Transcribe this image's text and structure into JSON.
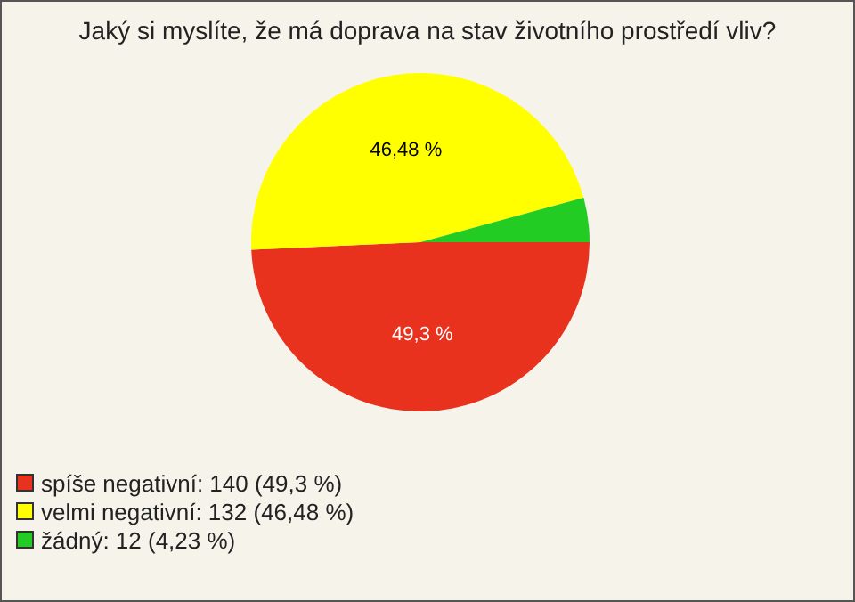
{
  "chart_data": {
    "type": "pie",
    "title": "Jaký si myslíte, že má doprava na stav životního prostředí vliv?",
    "categories": [
      "spíše negativní: 140 (49,3 %)",
      "velmi negativní: 132 (46,48 %)",
      "žádný: 12 (4,23 %)"
    ],
    "values": [
      49.3,
      46.48,
      4.23
    ],
    "colors": [
      "#e8321e",
      "#ffff00",
      "#22cc22"
    ],
    "value_labels": [
      "49,3 %",
      "46,48 %",
      null
    ],
    "legend": "bottom left"
  }
}
